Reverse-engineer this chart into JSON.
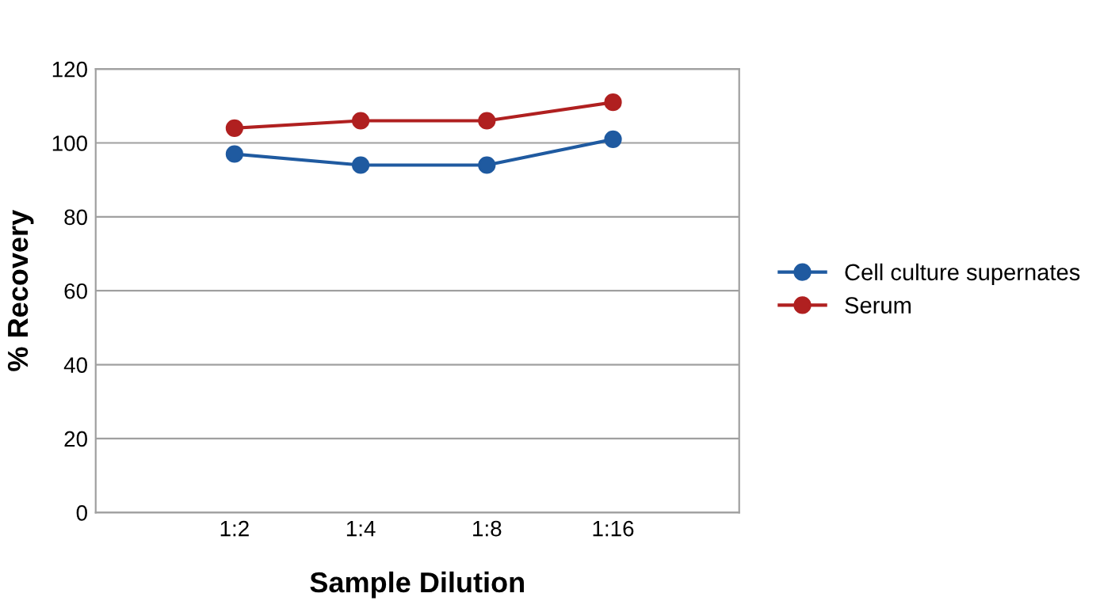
{
  "chart_data": {
    "type": "line",
    "xlabel": "Sample Dilution",
    "ylabel": "% Recovery",
    "categories": [
      "1:2",
      "1:4",
      "1:8",
      "1:16"
    ],
    "series": [
      {
        "name": "Cell culture supernates",
        "color": "#1f5aa0",
        "values": [
          97,
          94,
          94,
          101
        ]
      },
      {
        "name": "Serum",
        "color": "#b02020",
        "values": [
          104,
          106,
          106,
          111
        ]
      }
    ],
    "ylim": [
      0,
      120
    ],
    "yticks": [
      0,
      20,
      40,
      60,
      80,
      100,
      120
    ],
    "grid": "y",
    "legend": "right",
    "marker": "circle",
    "line_style": "solid"
  }
}
